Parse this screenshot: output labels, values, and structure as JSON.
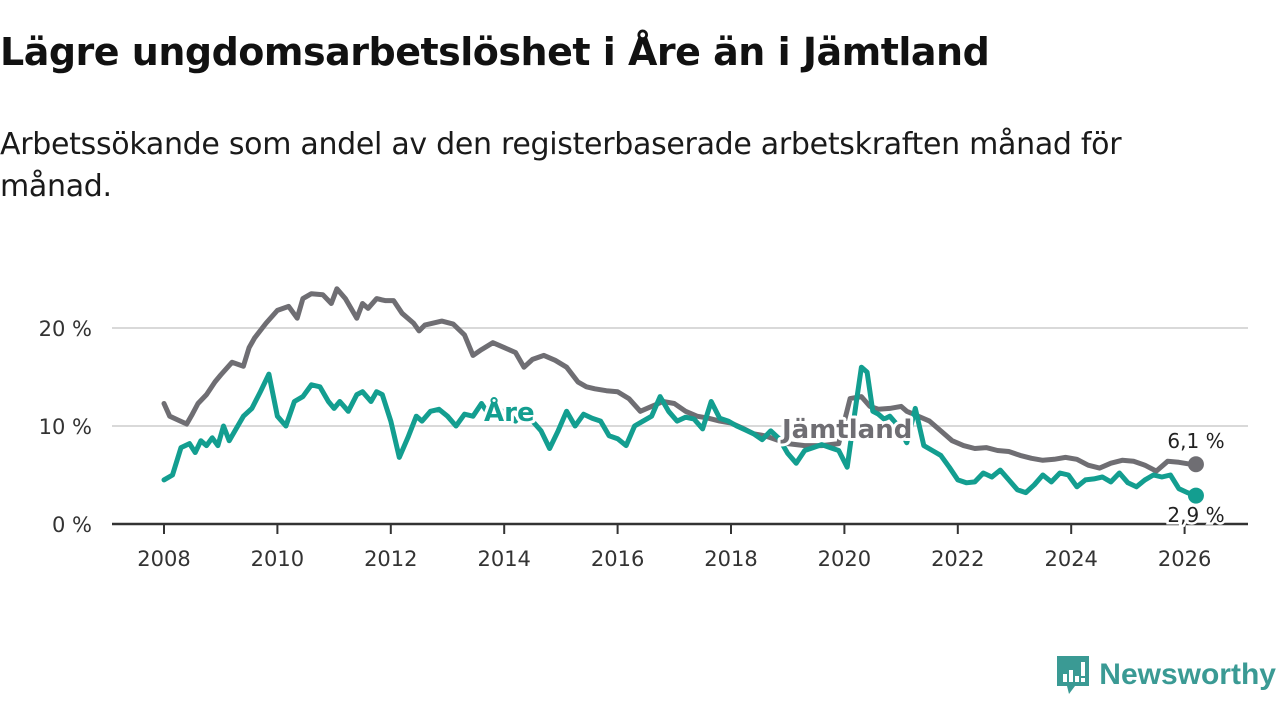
{
  "header": {
    "title": "Lägre ungdomsarbetslöshet i Åre än i Jämtland",
    "subtitle": "Arbetssökande som andel av den registerbaserade arbetskraften månad för månad."
  },
  "branding": {
    "name": "Newsworthy",
    "icon": "newsworthy-logo-icon",
    "color": "#3a9a94"
  },
  "chart_data": {
    "type": "line",
    "title": "Lägre ungdomsarbetslöshet i Åre än i Jämtland",
    "subtitle": "Arbetssökande som andel av den registerbaserade arbetskraften månad för månad.",
    "xlabel": "",
    "ylabel": "",
    "xlim": [
      2007.1,
      2027.1
    ],
    "ylim": [
      0,
      25
    ],
    "grid": true,
    "x_ticks": [
      2008,
      2010,
      2012,
      2014,
      2016,
      2018,
      2020,
      2022,
      2024,
      2026
    ],
    "x_tick_labels": [
      "2008",
      "2010",
      "2012",
      "2014",
      "2016",
      "2018",
      "2020",
      "2022",
      "2024",
      "2026"
    ],
    "y_ticks": [
      0,
      10,
      20
    ],
    "y_tick_labels": [
      "0 %",
      "10 %",
      "20 %"
    ],
    "series": [
      {
        "name": "Jämtland",
        "color": "#6f6e73",
        "end_label": "6,1 %",
        "x": [
          2008.0,
          2008.1,
          2008.25,
          2008.4,
          2008.5,
          2008.6,
          2008.75,
          2008.9,
          2009.0,
          2009.2,
          2009.4,
          2009.5,
          2009.6,
          2009.8,
          2010.0,
          2010.2,
          2010.35,
          2010.45,
          2010.6,
          2010.8,
          2010.95,
          2011.05,
          2011.2,
          2011.4,
          2011.5,
          2011.6,
          2011.75,
          2011.9,
          2012.05,
          2012.2,
          2012.4,
          2012.5,
          2012.6,
          2012.75,
          2012.9,
          2013.1,
          2013.3,
          2013.45,
          2013.6,
          2013.8,
          2014.0,
          2014.2,
          2014.35,
          2014.5,
          2014.7,
          2014.9,
          2015.1,
          2015.3,
          2015.45,
          2015.6,
          2015.8,
          2016.0,
          2016.2,
          2016.4,
          2016.6,
          2016.8,
          2017.0,
          2017.2,
          2017.4,
          2017.6,
          2017.8,
          2018.0,
          2018.2,
          2018.4,
          2018.6,
          2018.8,
          2019.0,
          2019.3,
          2019.6,
          2019.9,
          2020.1,
          2020.3,
          2020.45,
          2020.6,
          2020.8,
          2021.0,
          2021.1,
          2021.3,
          2021.5,
          2021.7,
          2021.9,
          2022.1,
          2022.3,
          2022.5,
          2022.7,
          2022.9,
          2023.1,
          2023.3,
          2023.5,
          2023.7,
          2023.9,
          2024.1,
          2024.3,
          2024.5,
          2024.7,
          2024.9,
          2025.1,
          2025.3,
          2025.5,
          2025.7,
          2025.9,
          2026.1,
          2026.2
        ],
        "y": [
          12.3,
          11.0,
          10.6,
          10.2,
          11.2,
          12.3,
          13.2,
          14.5,
          15.2,
          16.5,
          16.1,
          18.0,
          19.0,
          20.5,
          21.8,
          22.2,
          21.0,
          23.0,
          23.5,
          23.4,
          22.5,
          24.0,
          23.0,
          21.0,
          22.5,
          22.0,
          23.0,
          22.8,
          22.8,
          21.5,
          20.5,
          19.7,
          20.3,
          20.5,
          20.7,
          20.4,
          19.3,
          17.2,
          17.8,
          18.5,
          18.0,
          17.5,
          16.0,
          16.8,
          17.2,
          16.7,
          16.0,
          14.5,
          14.0,
          13.8,
          13.6,
          13.5,
          12.8,
          11.5,
          12.0,
          12.5,
          12.3,
          11.5,
          11.0,
          10.8,
          10.5,
          10.3,
          9.8,
          9.2,
          9.0,
          8.6,
          8.2,
          8.0,
          8.0,
          8.2,
          12.8,
          13.0,
          12.0,
          11.7,
          11.8,
          12.0,
          11.5,
          11.0,
          10.5,
          9.5,
          8.5,
          8.0,
          7.7,
          7.8,
          7.5,
          7.4,
          7.0,
          6.7,
          6.5,
          6.6,
          6.8,
          6.6,
          6.0,
          5.7,
          6.2,
          6.5,
          6.4,
          6.0,
          5.4,
          6.4,
          6.3,
          6.1,
          6.1
        ],
        "final": {
          "x": 2026.2,
          "y": 6.1
        }
      },
      {
        "name": "Åre",
        "color": "#139e90",
        "end_label": "2,9 %",
        "x": [
          2008.0,
          2008.15,
          2008.3,
          2008.45,
          2008.55,
          2008.65,
          2008.75,
          2008.85,
          2008.95,
          2009.05,
          2009.15,
          2009.25,
          2009.4,
          2009.55,
          2009.7,
          2009.85,
          2010.0,
          2010.15,
          2010.3,
          2010.45,
          2010.6,
          2010.75,
          2010.9,
          2011.0,
          2011.1,
          2011.25,
          2011.4,
          2011.5,
          2011.65,
          2011.75,
          2011.85,
          2012.0,
          2012.15,
          2012.3,
          2012.45,
          2012.55,
          2012.7,
          2012.85,
          2013.0,
          2013.15,
          2013.3,
          2013.45,
          2013.6,
          2013.75,
          2013.9,
          2014.05,
          2014.2,
          2014.35,
          2014.5,
          2014.65,
          2014.8,
          2014.95,
          2015.1,
          2015.25,
          2015.4,
          2015.55,
          2015.7,
          2015.85,
          2016.0,
          2016.15,
          2016.3,
          2016.45,
          2016.6,
          2016.75,
          2016.9,
          2017.05,
          2017.2,
          2017.35,
          2017.5,
          2017.65,
          2017.8,
          2017.95,
          2018.1,
          2018.25,
          2018.4,
          2018.55,
          2018.7,
          2018.85,
          2019.0,
          2019.15,
          2019.3,
          2019.45,
          2019.6,
          2019.75,
          2019.9,
          2020.05,
          2020.2,
          2020.3,
          2020.4,
          2020.5,
          2020.6,
          2020.7,
          2020.8,
          2020.95,
          2021.1,
          2021.25,
          2021.4,
          2021.55,
          2021.7,
          2021.85,
          2022.0,
          2022.15,
          2022.3,
          2022.45,
          2022.6,
          2022.75,
          2022.9,
          2023.05,
          2023.2,
          2023.35,
          2023.5,
          2023.65,
          2023.8,
          2023.95,
          2024.1,
          2024.25,
          2024.4,
          2024.55,
          2024.7,
          2024.85,
          2025.0,
          2025.15,
          2025.3,
          2025.45,
          2025.6,
          2025.75,
          2025.9,
          2026.05,
          2026.2
        ],
        "y": [
          4.5,
          5.0,
          7.8,
          8.2,
          7.3,
          8.5,
          8.0,
          8.8,
          8.0,
          10.0,
          8.5,
          9.5,
          11.0,
          11.8,
          13.5,
          15.3,
          11.0,
          10.0,
          12.5,
          13.0,
          14.2,
          14.0,
          12.5,
          11.8,
          12.5,
          11.5,
          13.2,
          13.5,
          12.5,
          13.5,
          13.2,
          10.5,
          6.8,
          8.8,
          11.0,
          10.5,
          11.5,
          11.7,
          11.0,
          10.0,
          11.2,
          11.0,
          12.3,
          11.0,
          11.5,
          11.5,
          10.5,
          11.5,
          10.5,
          9.5,
          7.7,
          9.5,
          11.5,
          10.0,
          11.2,
          10.8,
          10.5,
          9.0,
          8.7,
          8.0,
          10.0,
          10.5,
          11.0,
          13.0,
          11.5,
          10.5,
          10.9,
          10.7,
          9.7,
          12.5,
          10.8,
          10.5,
          10.0,
          9.6,
          9.2,
          8.6,
          9.5,
          8.7,
          7.2,
          6.2,
          7.5,
          7.8,
          8.1,
          7.8,
          7.5,
          5.8,
          12.0,
          16.0,
          15.5,
          11.5,
          11.2,
          10.7,
          11.0,
          10.0,
          8.3,
          11.8,
          8.0,
          7.5,
          7.0,
          5.8,
          4.5,
          4.2,
          4.3,
          5.2,
          4.8,
          5.5,
          4.5,
          3.5,
          3.2,
          4.0,
          5.0,
          4.3,
          5.2,
          5.0,
          3.8,
          4.5,
          4.6,
          4.8,
          4.3,
          5.2,
          4.2,
          3.8,
          4.5,
          5.0,
          4.8,
          5.0,
          3.6,
          3.2,
          2.9
        ],
        "final": {
          "x": 2026.2,
          "y": 2.9
        }
      }
    ],
    "annotations": [
      {
        "text": "Åre",
        "series": "Åre",
        "near_x": 2014.6
      },
      {
        "text": "Jämtland",
        "series": "Jämtland",
        "near_x": 2019.2
      },
      {
        "text": "6,1 %",
        "series": "Jämtland",
        "at": "end"
      },
      {
        "text": "2,9 %",
        "series": "Åre",
        "at": "end"
      }
    ]
  }
}
